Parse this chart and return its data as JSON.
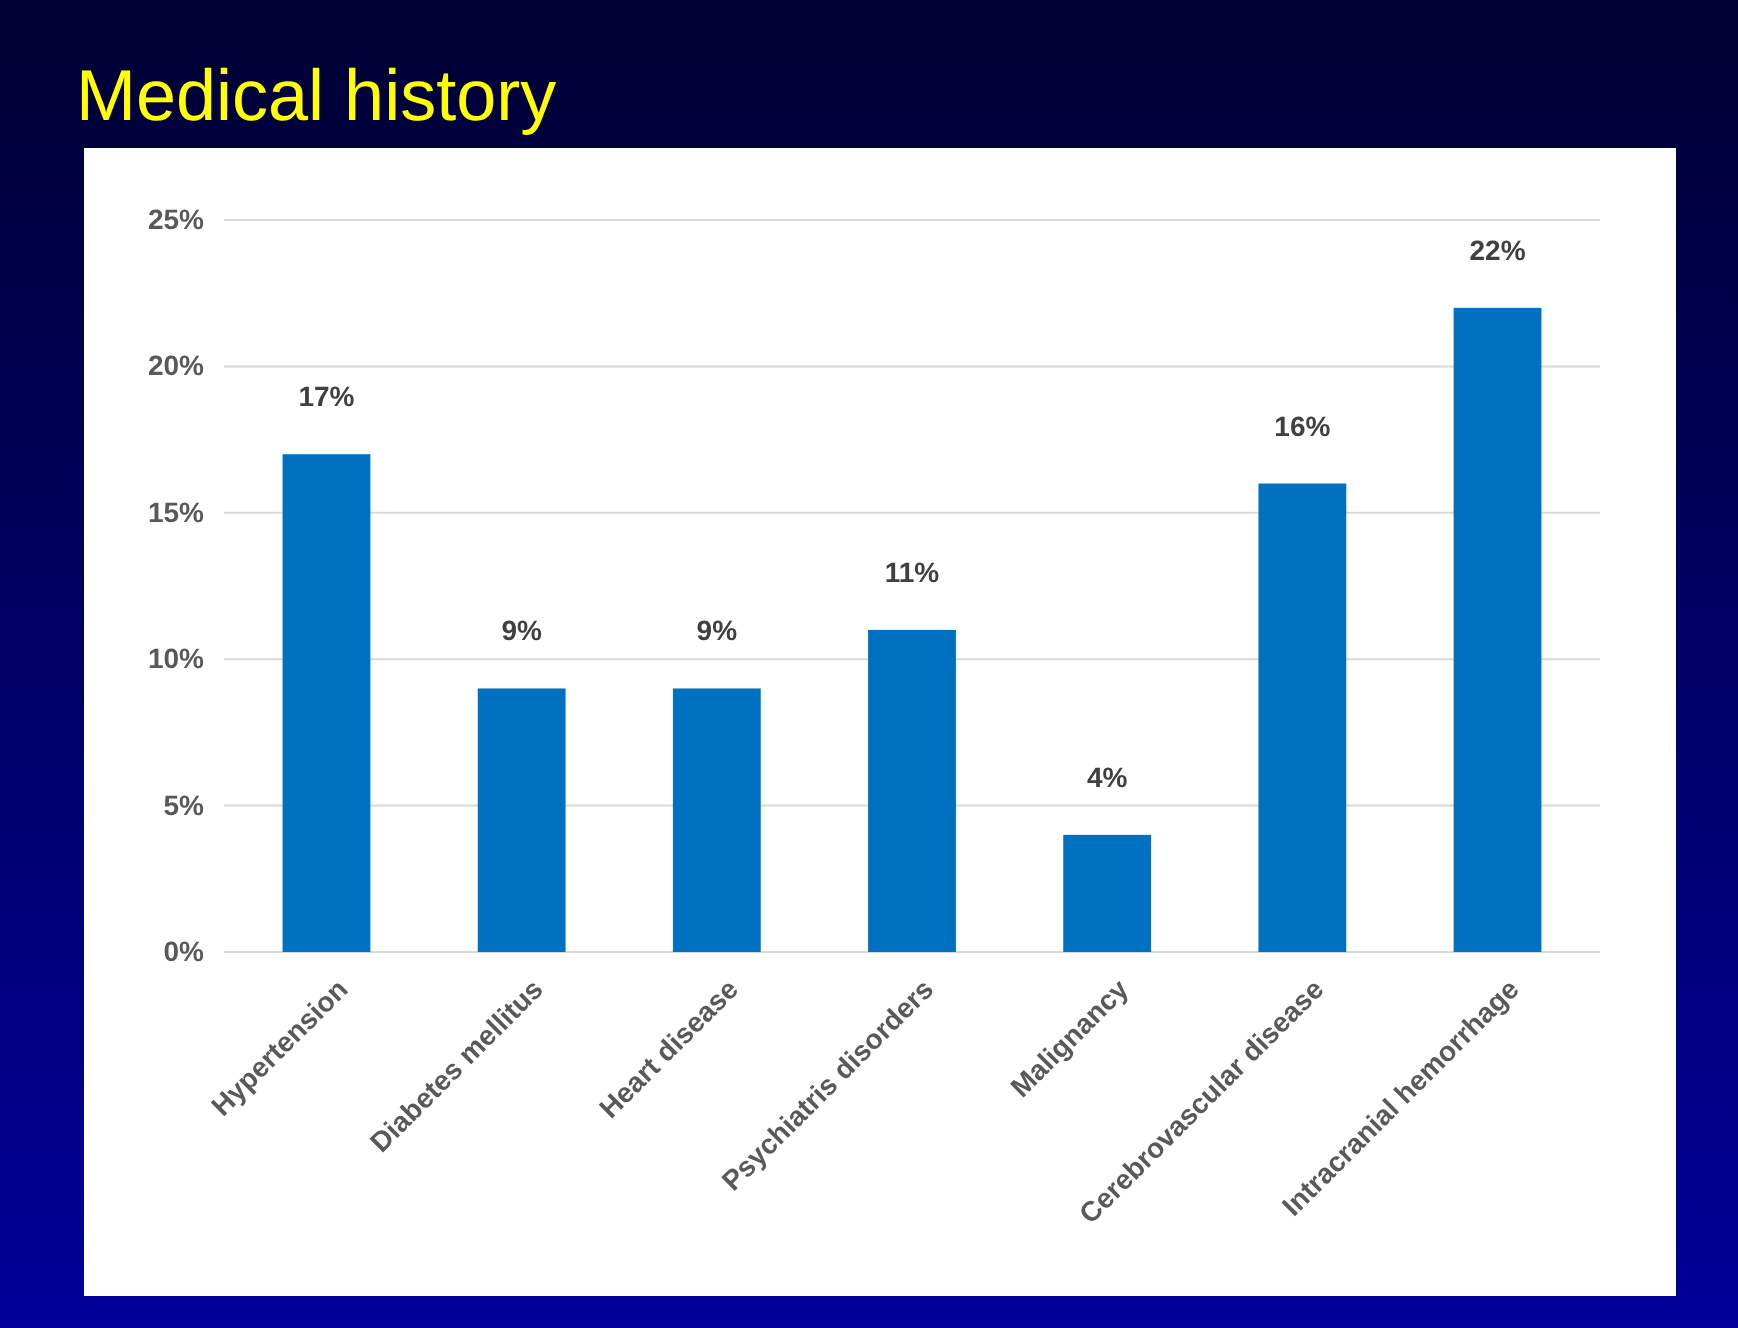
{
  "chart_data": {
    "type": "bar",
    "title": "Medical history",
    "categories": [
      "Hypertension",
      "Diabetes mellitus",
      "Heart disease",
      "Psychiatris disorders",
      "Malignancy",
      "Cerebrovascular disease",
      "Intracranial hemorrhage"
    ],
    "values": [
      17,
      9,
      9,
      11,
      4,
      16,
      22
    ],
    "value_labels": [
      "17%",
      "9%",
      "9%",
      "11%",
      "4%",
      "16%",
      "22%"
    ],
    "color": "#0070c0",
    "ylim": [
      0,
      25
    ],
    "yticks": [
      {
        "value": 0,
        "label": "0%"
      },
      {
        "value": 5,
        "label": "5%"
      },
      {
        "value": 10,
        "label": "10%"
      },
      {
        "value": 15,
        "label": "15%"
      },
      {
        "value": 20,
        "label": "20%"
      },
      {
        "value": 25,
        "label": "25%"
      }
    ],
    "grid": "y"
  }
}
